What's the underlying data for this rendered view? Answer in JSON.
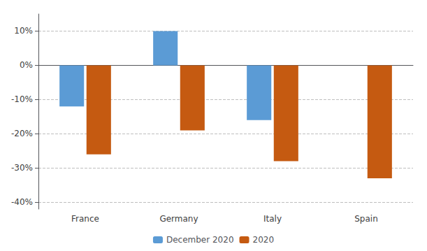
{
  "chart_data": {
    "type": "bar",
    "categories": [
      "France",
      "Germany",
      "Italy",
      "Spain"
    ],
    "series": [
      {
        "name": "December 2020",
        "color": "#5B9BD5",
        "values": [
          -12,
          10,
          -16,
          0
        ]
      },
      {
        "name": "2020",
        "color": "#C55A11",
        "values": [
          -26,
          -19,
          -28,
          -33
        ]
      }
    ],
    "ylim": [
      -42,
      15
    ],
    "yticks": [
      {
        "value": -40,
        "label": "-40%"
      },
      {
        "value": -30,
        "label": "-30%"
      },
      {
        "value": -20,
        "label": "-20%"
      },
      {
        "value": -10,
        "label": "-10%"
      },
      {
        "value": 0,
        "label": "0%"
      },
      {
        "value": 10,
        "label": "10%"
      }
    ],
    "grid": true,
    "legend": "bottom"
  }
}
